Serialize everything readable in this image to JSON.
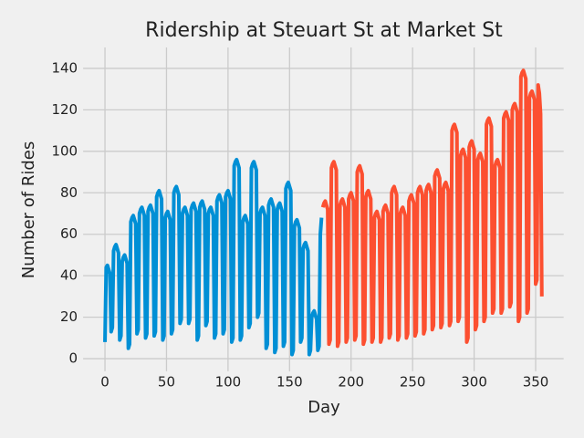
{
  "chart_data": {
    "type": "line",
    "title": "Ridership at Steuart St at Market St",
    "xlabel": "Day",
    "ylabel": "Number of Rides",
    "xlim": [
      -17.75,
      372.75
    ],
    "ylim": [
      -6.1,
      150.1
    ],
    "xticks": [
      0,
      50,
      100,
      150,
      200,
      250,
      300,
      350
    ],
    "yticks": [
      0,
      20,
      40,
      60,
      80,
      100,
      120,
      140
    ],
    "grid": true,
    "series": [
      {
        "name": "blue",
        "color": "#008fd5",
        "x": [
          0,
          1,
          2,
          3,
          4,
          5,
          6,
          7,
          8,
          9,
          10,
          11,
          12,
          13,
          14,
          15,
          16,
          17,
          18,
          19,
          20,
          21,
          22,
          23,
          24,
          25,
          26,
          27,
          28,
          29,
          30,
          31,
          32,
          33,
          34,
          35,
          36,
          37,
          38,
          39,
          40,
          41,
          42,
          43,
          44,
          45,
          46,
          47,
          48,
          49,
          50,
          51,
          52,
          53,
          54,
          55,
          56,
          57,
          58,
          59,
          60,
          61,
          62,
          63,
          64,
          65,
          66,
          67,
          68,
          69,
          70,
          71,
          72,
          73,
          74,
          75,
          76,
          77,
          78,
          79,
          80,
          81,
          82,
          83,
          84,
          85,
          86,
          87,
          88,
          89,
          90,
          91,
          92,
          93,
          94,
          95,
          96,
          97,
          98,
          99,
          100,
          101,
          102,
          103,
          104,
          105,
          106,
          107,
          108,
          109,
          110,
          111,
          112,
          113,
          114,
          115,
          116,
          117,
          118,
          119,
          120,
          121,
          122,
          123,
          124,
          125,
          126,
          127,
          128,
          129,
          130,
          131,
          132,
          133,
          134,
          135,
          136,
          137,
          138,
          139,
          140,
          141,
          142,
          143,
          144,
          145,
          146,
          147,
          148,
          149,
          150,
          151,
          152,
          153,
          154,
          155,
          156,
          157,
          158,
          159,
          160,
          161,
          162,
          163,
          164,
          165,
          166,
          167,
          168,
          169,
          170,
          171,
          172,
          173,
          174,
          175,
          176
        ],
        "values": [
          8,
          44,
          45,
          43,
          41,
          13,
          15,
          52,
          54,
          55,
          53,
          51,
          9,
          11,
          47,
          49,
          50,
          48,
          46,
          5,
          7,
          66,
          68,
          69,
          67,
          65,
          12,
          14,
          70,
          72,
          73,
          71,
          69,
          10,
          12,
          71,
          73,
          74,
          72,
          70,
          11,
          13,
          78,
          80,
          81,
          79,
          77,
          9,
          11,
          68,
          70,
          71,
          69,
          67,
          12,
          14,
          80,
          82,
          83,
          81,
          79,
          17,
          19,
          70,
          72,
          73,
          71,
          69,
          17,
          19,
          72,
          74,
          75,
          73,
          71,
          9,
          11,
          73,
          75,
          76,
          74,
          72,
          16,
          18,
          70,
          72,
          73,
          71,
          69,
          10,
          12,
          76,
          78,
          79,
          77,
          75,
          12,
          14,
          78,
          80,
          81,
          79,
          77,
          8,
          10,
          93,
          95,
          96,
          94,
          92,
          9,
          11,
          66,
          68,
          69,
          67,
          65,
          15,
          17,
          92,
          94,
          95,
          93,
          91,
          20,
          22,
          70,
          72,
          73,
          71,
          69,
          5,
          7,
          74,
          76,
          77,
          75,
          73,
          3,
          5,
          72,
          74,
          75,
          73,
          71,
          6,
          8,
          82,
          84,
          85,
          83,
          81,
          2,
          4,
          64,
          66,
          67,
          65,
          63,
          8,
          10,
          53,
          55,
          56,
          54,
          52,
          2,
          4,
          20,
          22,
          23,
          21,
          19,
          4,
          6,
          60,
          68
        ]
      },
      {
        "name": "red",
        "color": "#fc4f30",
        "x": [
          177,
          178,
          179,
          180,
          181,
          182,
          183,
          184,
          185,
          186,
          187,
          188,
          189,
          190,
          191,
          192,
          193,
          194,
          195,
          196,
          197,
          198,
          199,
          200,
          201,
          202,
          203,
          204,
          205,
          206,
          207,
          208,
          209,
          210,
          211,
          212,
          213,
          214,
          215,
          216,
          217,
          218,
          219,
          220,
          221,
          222,
          223,
          224,
          225,
          226,
          227,
          228,
          229,
          230,
          231,
          232,
          233,
          234,
          235,
          236,
          237,
          238,
          239,
          240,
          241,
          242,
          243,
          244,
          245,
          246,
          247,
          248,
          249,
          250,
          251,
          252,
          253,
          254,
          255,
          256,
          257,
          258,
          259,
          260,
          261,
          262,
          263,
          264,
          265,
          266,
          267,
          268,
          269,
          270,
          271,
          272,
          273,
          274,
          275,
          276,
          277,
          278,
          279,
          280,
          281,
          282,
          283,
          284,
          285,
          286,
          287,
          288,
          289,
          290,
          291,
          292,
          293,
          294,
          295,
          296,
          297,
          298,
          299,
          300,
          301,
          302,
          303,
          304,
          305,
          306,
          307,
          308,
          309,
          310,
          311,
          312,
          313,
          314,
          315,
          316,
          317,
          318,
          319,
          320,
          321,
          322,
          323,
          324,
          325,
          326,
          327,
          328,
          329,
          330,
          331,
          332,
          333,
          334,
          335,
          336,
          337,
          338,
          339,
          340,
          341,
          342,
          343,
          344,
          345,
          346,
          347,
          348,
          349,
          350,
          351,
          352,
          353,
          354,
          355
        ],
        "values": [
          73,
          75,
          76,
          74,
          72,
          7,
          9,
          92,
          94,
          95,
          93,
          91,
          6,
          8,
          74,
          76,
          77,
          75,
          73,
          8,
          10,
          77,
          79,
          80,
          78,
          76,
          9,
          11,
          90,
          92,
          93,
          91,
          89,
          7,
          9,
          78,
          80,
          81,
          79,
          77,
          8,
          10,
          68,
          70,
          71,
          69,
          67,
          8,
          10,
          71,
          73,
          74,
          72,
          70,
          10,
          12,
          80,
          82,
          83,
          81,
          79,
          9,
          11,
          70,
          72,
          73,
          71,
          69,
          10,
          12,
          76,
          78,
          79,
          77,
          75,
          11,
          13,
          80,
          82,
          83,
          81,
          79,
          12,
          14,
          81,
          83,
          84,
          82,
          80,
          14,
          16,
          88,
          90,
          91,
          89,
          87,
          15,
          17,
          82,
          84,
          85,
          83,
          81,
          16,
          18,
          110,
          112,
          113,
          111,
          109,
          18,
          20,
          98,
          100,
          101,
          99,
          97,
          8,
          10,
          102,
          104,
          105,
          103,
          101,
          14,
          16,
          96,
          98,
          99,
          97,
          95,
          18,
          20,
          113,
          115,
          116,
          114,
          112,
          22,
          24,
          93,
          95,
          96,
          94,
          92,
          22,
          24,
          116,
          118,
          119,
          117,
          115,
          25,
          27,
          120,
          122,
          123,
          121,
          119,
          18,
          20,
          136,
          138,
          139,
          137,
          135,
          22,
          24,
          126,
          128,
          129,
          127,
          125,
          36,
          38,
          132,
          128,
          118,
          30
        ]
      }
    ]
  }
}
